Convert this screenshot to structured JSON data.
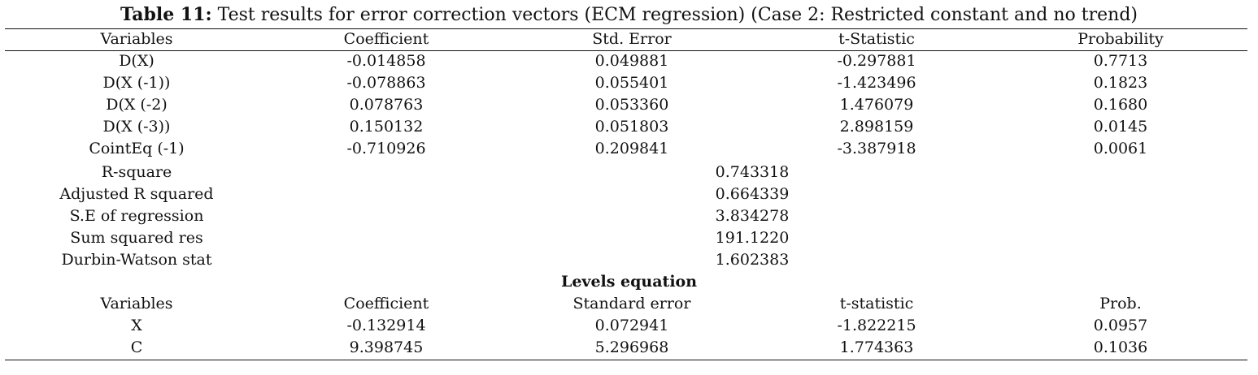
{
  "caption": {
    "label": "Table 11:",
    "text": " Test results for error correction vectors (ECM regression) (Case 2: Restricted constant and no trend)"
  },
  "ecm": {
    "headers": [
      "Variables",
      "Coefficient",
      "Std. Error",
      "t-Statistic",
      "Probability"
    ],
    "rows": [
      [
        "D(X)",
        "-0.014858",
        "0.049881",
        "-0.297881",
        "0.7713"
      ],
      [
        "D(X (-1))",
        "-0.078863",
        "0.055401",
        "-1.423496",
        "0.1823"
      ],
      [
        "D(X (-2)",
        "0.078763",
        "0.053360",
        "1.476079",
        "0.1680"
      ],
      [
        "D(X (-3))",
        "0.150132",
        "0.051803",
        "2.898159",
        "0.0145"
      ],
      [
        "CointEq (-1)",
        "-0.710926",
        "0.209841",
        "-3.387918",
        "0.0061"
      ]
    ],
    "stats": [
      [
        "R-square",
        "0.743318"
      ],
      [
        "Adjusted R squared",
        "0.664339"
      ],
      [
        "S.E of regression",
        "3.834278"
      ],
      [
        "Sum squared res",
        "191.1220"
      ],
      [
        "Durbin-Watson stat",
        "1.602383"
      ]
    ]
  },
  "levels": {
    "title": "Levels equation",
    "headers": [
      "Variables",
      "Coefficient",
      "Standard error",
      "t-statistic",
      "Prob."
    ],
    "rows": [
      [
        "X",
        "-0.132914",
        "0.072941",
        "-1.822215",
        "0.0957"
      ],
      [
        "C",
        "9.398745",
        "5.296968",
        "1.774363",
        "0.1036"
      ]
    ]
  }
}
